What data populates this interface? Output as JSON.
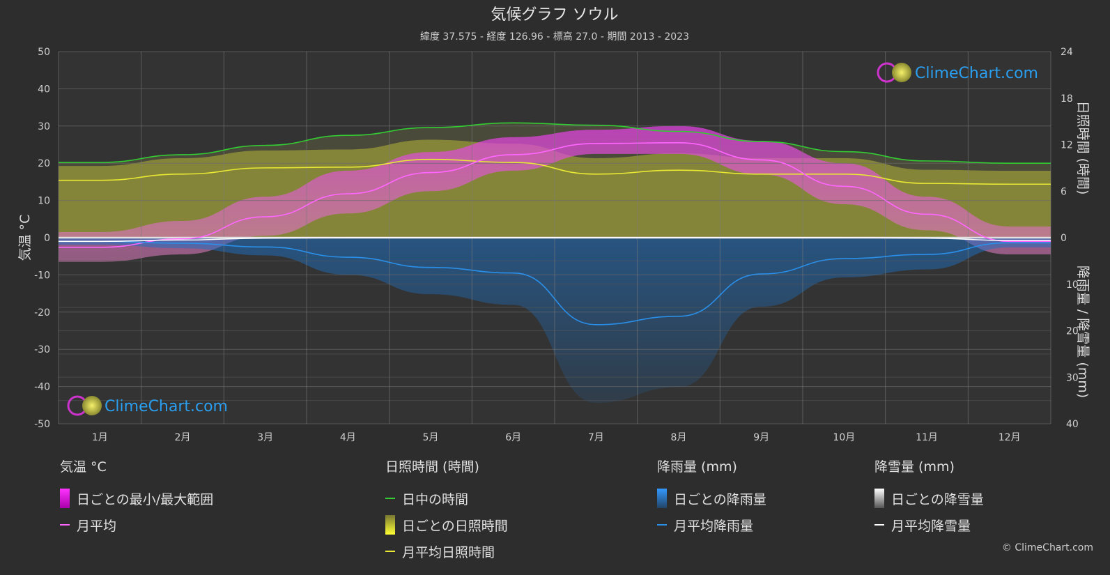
{
  "title": "気候グラフ ソウル",
  "subtitle": "緯度 37.575 - 経度 126.96 - 標高 27.0 - 期間 2013 - 2023",
  "watermark": "ClimeChart.com",
  "copyright": "© ClimeChart.com",
  "colors": {
    "background": "#2d2d2d",
    "daylight": "#33cc33",
    "sunshine": "#e8e835",
    "temp_avg": "#ff66ff",
    "temp_range": "#cc33cc",
    "rain": "#2a8fe8",
    "snow": "#ffffff"
  },
  "chart_data": {
    "type": "line",
    "categories": [
      "1月",
      "2月",
      "3月",
      "4月",
      "5月",
      "6月",
      "7月",
      "8月",
      "9月",
      "10月",
      "11月",
      "12月"
    ],
    "left_axis": {
      "label": "気温 °C",
      "ylim": [
        -50,
        50
      ],
      "ticks": [
        "50",
        "40",
        "30",
        "20",
        "10",
        "0",
        "-10",
        "-20",
        "-30",
        "-40",
        "-50"
      ]
    },
    "right_axis_top": {
      "label": "日照時間 (時間)",
      "ylim": [
        0,
        24
      ],
      "ticks": [
        "24",
        "18",
        "12",
        "6",
        "0"
      ]
    },
    "right_axis_bottom": {
      "label": "降雨量 / 降雪量 (mm)",
      "ylim": [
        0,
        40
      ],
      "ticks": [
        "10",
        "20",
        "30",
        "40"
      ]
    },
    "grid": true,
    "series": [
      {
        "name": "日中の時間",
        "axis": "sunshine",
        "values": [
          9.7,
          10.7,
          11.9,
          13.2,
          14.2,
          14.8,
          14.5,
          13.7,
          12.4,
          11.1,
          9.9,
          9.6
        ]
      },
      {
        "name": "月平均日照時間",
        "axis": "sunshine",
        "values": [
          7.4,
          8.2,
          9.0,
          9.1,
          10.1,
          9.7,
          8.2,
          8.7,
          8.2,
          8.2,
          7.0,
          6.9
        ]
      },
      {
        "name": "月平均",
        "axis": "temperature",
        "values": [
          -2.6,
          -0.3,
          5.6,
          11.8,
          17.5,
          22.3,
          25.3,
          25.5,
          20.9,
          13.8,
          6.3,
          -1.0
        ]
      },
      {
        "name": "月平均降雨量",
        "axis": "precipitation",
        "values": [
          0.8,
          1.2,
          2.0,
          4.2,
          6.4,
          7.6,
          18.7,
          16.9,
          7.8,
          4.5,
          3.6,
          1.1
        ]
      },
      {
        "name": "月平均降雪量",
        "axis": "precipitation",
        "values": [
          0.8,
          0.5,
          0.1,
          0,
          0,
          0,
          0,
          0,
          0,
          0,
          0.1,
          0.6
        ]
      }
    ],
    "temp_range": {
      "name": "日ごとの最小/最大範囲",
      "min": [
        -6.5,
        -4.5,
        0.5,
        6.5,
        12.5,
        18.0,
        22.5,
        22.5,
        17.0,
        9.0,
        2.0,
        -4.5
      ],
      "max": [
        1.5,
        4.5,
        11.0,
        18.0,
        23.0,
        27.0,
        29.0,
        30.0,
        26.0,
        20.0,
        11.0,
        3.0
      ]
    }
  },
  "legend": {
    "temperature": {
      "title": "気温 °C",
      "items": [
        "日ごとの最小/最大範囲",
        "月平均"
      ]
    },
    "sunshine": {
      "title": "日照時間 (時間)",
      "items": [
        "日中の時間",
        "日ごとの日照時間",
        "月平均日照時間"
      ]
    },
    "rain": {
      "title": "降雨量 (mm)",
      "items": [
        "日ごとの降雨量",
        "月平均降雨量"
      ]
    },
    "snow": {
      "title": "降雪量 (mm)",
      "items": [
        "日ごとの降雪量",
        "月平均降雪量"
      ]
    }
  }
}
